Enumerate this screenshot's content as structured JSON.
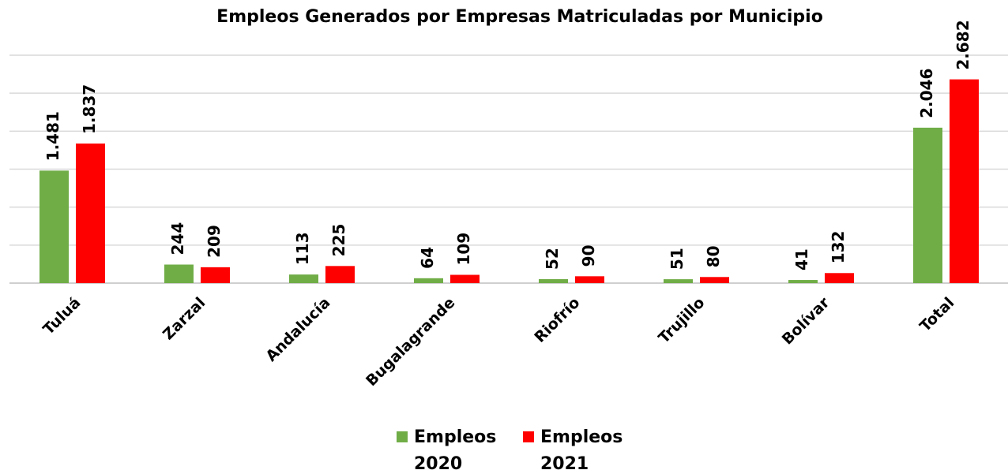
{
  "chart_data": {
    "type": "bar",
    "title": "Empleos Generados por Empresas Matriculadas por Municipio",
    "categories": [
      "Tuluá",
      "Zarzal",
      "Andalucía",
      "Bugalagrande",
      "Riofrío",
      "Trujillo",
      "Bolívar",
      "Total"
    ],
    "series": [
      {
        "name": "Empleos 2020",
        "color": "#70ad47",
        "values": [
          1481,
          244,
          113,
          64,
          52,
          51,
          41,
          2046
        ],
        "value_labels": [
          "1.481",
          "244",
          "113",
          "64",
          "52",
          "51",
          "41",
          "2.046"
        ]
      },
      {
        "name": "Empleos 2021",
        "color": "#ff0000",
        "values": [
          1837,
          209,
          225,
          109,
          90,
          80,
          132,
          2682
        ],
        "value_labels": [
          "1.837",
          "209",
          "225",
          "109",
          "90",
          "80",
          "132",
          "2.682"
        ]
      }
    ],
    "ylim": [
      0,
      3000
    ],
    "yticks": [
      0,
      500,
      1000,
      1500,
      2000,
      2500,
      3000
    ],
    "grid": true,
    "legend": "bottom"
  }
}
